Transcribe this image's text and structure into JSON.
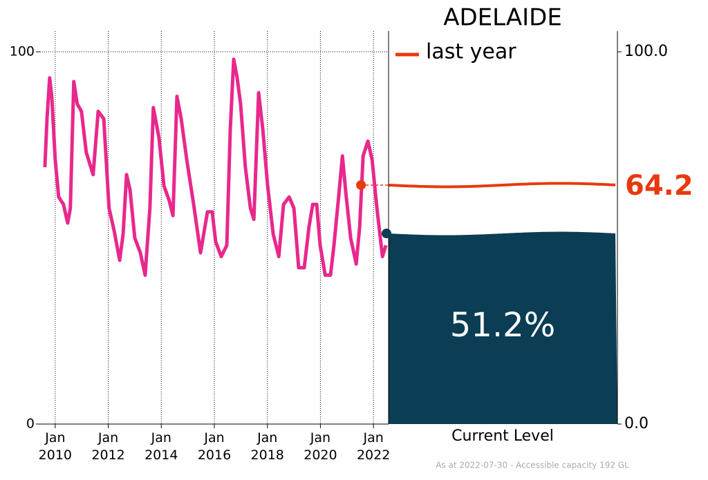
{
  "chart_data": {
    "type": "line",
    "title": "ADELAIDE",
    "color": "#e8288c",
    "x": [
      2009.61,
      2009.69,
      2009.79,
      2009.87,
      2010.0,
      2010.13,
      2010.31,
      2010.47,
      2010.57,
      2010.7,
      2010.83,
      2010.99,
      2011.17,
      2011.43,
      2011.62,
      2011.83,
      2012.03,
      2012.22,
      2012.43,
      2012.56,
      2012.69,
      2012.82,
      2013.0,
      2013.21,
      2013.39,
      2013.57,
      2013.7,
      2013.91,
      2014.1,
      2014.3,
      2014.44,
      2014.59,
      2014.75,
      2014.96,
      2015.22,
      2015.48,
      2015.74,
      2015.92,
      2016.05,
      2016.26,
      2016.47,
      2016.6,
      2016.73,
      2016.86,
      2016.99,
      2017.17,
      2017.36,
      2017.49,
      2017.67,
      2017.83,
      2018.01,
      2018.22,
      2018.43,
      2018.61,
      2018.82,
      2019.0,
      2019.18,
      2019.39,
      2019.57,
      2019.71,
      2019.86,
      2019.99,
      2020.18,
      2020.38,
      2020.51,
      2020.7,
      2020.83,
      2020.96,
      2021.14,
      2021.35,
      2021.48,
      2021.61,
      2021.79,
      2021.95,
      2022.13,
      2022.34,
      2022.47
    ],
    "values": [
      69,
      82,
      93,
      88,
      71,
      61,
      59,
      54,
      58,
      92,
      86,
      84,
      73,
      67,
      84,
      82,
      58,
      52,
      44,
      51,
      67,
      63,
      50,
      46,
      40,
      58,
      85,
      77,
      64,
      60,
      56,
      88,
      82,
      71,
      59,
      46,
      57,
      57,
      49,
      45,
      48,
      79,
      98,
      93,
      86,
      69,
      58,
      55,
      89,
      79,
      64,
      51,
      45,
      59,
      61,
      58,
      42,
      42,
      53,
      59,
      59,
      48,
      40,
      40,
      48,
      62,
      72,
      62,
      50,
      43,
      53,
      72,
      76,
      71,
      58,
      45,
      48
    ],
    "xlim": [
      2009.43,
      2022.57
    ],
    "ylim": [
      0,
      100
    ],
    "xticks": [
      {
        "value": 2010,
        "label": "Jan 2010"
      },
      {
        "value": 2012,
        "label": "Jan 2012"
      },
      {
        "value": 2014,
        "label": "Jan 2014"
      },
      {
        "value": 2016,
        "label": "Jan 2016"
      },
      {
        "value": 2018,
        "label": "Jan 2018"
      },
      {
        "value": 2020,
        "label": "Jan 2020"
      },
      {
        "value": 2022,
        "label": "Jan 2022"
      }
    ],
    "yticks": [
      0,
      100
    ],
    "y2lim": [
      0,
      100
    ],
    "y2ticks": [
      {
        "value": 0,
        "label": "0.0"
      },
      {
        "value": 100,
        "label": "100.0"
      }
    ],
    "grid": true,
    "last_year": {
      "name": "last year",
      "x": 2021.53,
      "value": 64.2,
      "color": "#e8390e"
    },
    "current": {
      "value": 51.2,
      "value_label": "51.2%",
      "label": "Current Level",
      "color": "#0b3d54"
    },
    "footnote": "As at 2022-07-30 - Accessible capacity 192 GL"
  }
}
